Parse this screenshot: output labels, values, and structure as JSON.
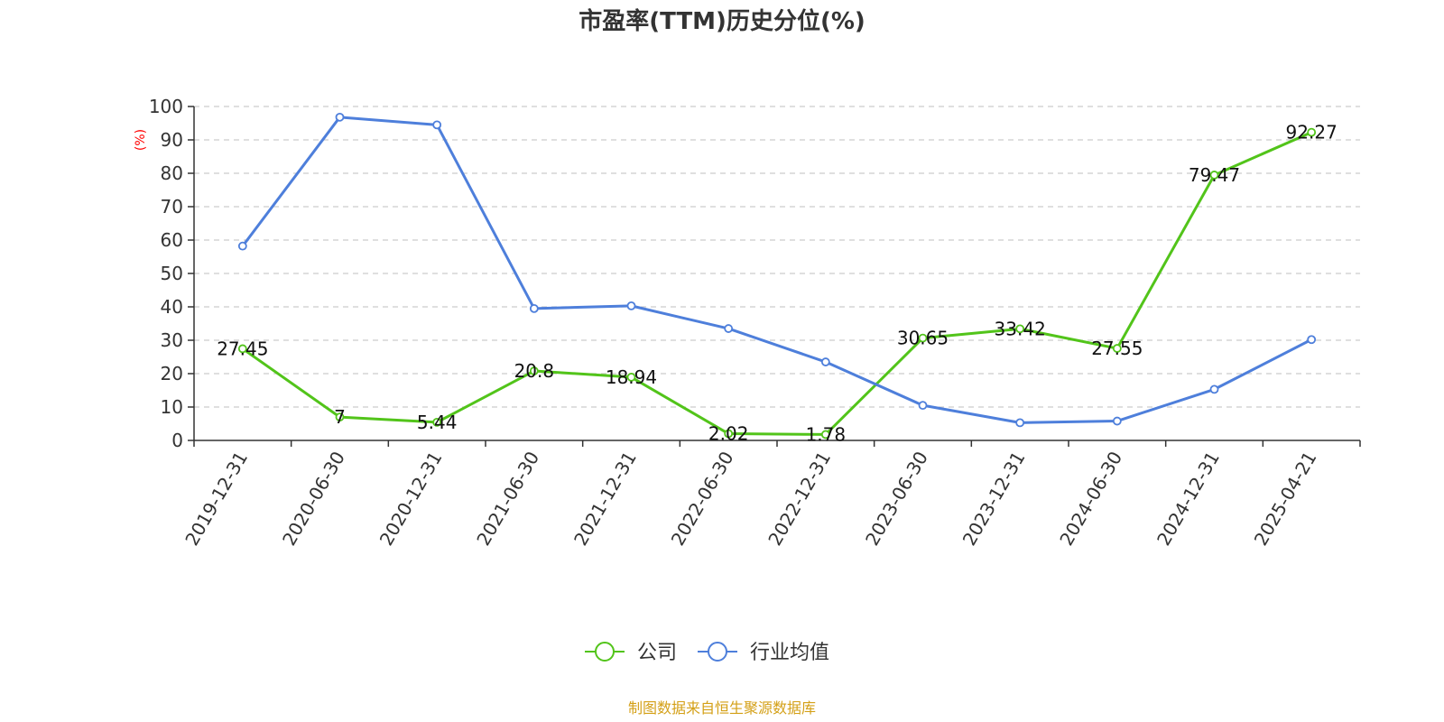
{
  "chart_data": {
    "type": "line",
    "title": "市盈率(TTM)历史分位(%)",
    "ylabel": "(%)",
    "ylim": [
      0,
      100
    ],
    "yticks": [
      0,
      10,
      20,
      30,
      40,
      50,
      60,
      70,
      80,
      90,
      100
    ],
    "grid": true,
    "legend_position": "bottom",
    "categories": [
      "2019-12-31",
      "2020-06-30",
      "2020-12-31",
      "2021-06-30",
      "2021-12-31",
      "2022-06-30",
      "2022-12-31",
      "2023-06-30",
      "2023-12-31",
      "2024-06-30",
      "2024-12-31",
      "2025-04-21"
    ],
    "series": [
      {
        "name": "公司",
        "color": "#52c41a",
        "values": [
          27.45,
          7,
          5.44,
          20.8,
          18.94,
          2.02,
          1.78,
          30.65,
          33.42,
          27.55,
          79.47,
          92.27
        ],
        "labels": [
          "27.45",
          "7",
          "5.44",
          "20.8",
          "18.94",
          "2.02",
          "1.78",
          "30.65",
          "33.42",
          "27.55",
          "79.47",
          "92.27"
        ]
      },
      {
        "name": "行业均值",
        "color": "#4e7fdb",
        "values": [
          58.2,
          96.8,
          94.5,
          39.5,
          40.3,
          33.5,
          23.5,
          10.5,
          5.3,
          5.8,
          15.3,
          30.2
        ]
      }
    ]
  },
  "source_text": "制图数据来自恒生聚源数据库",
  "colors": {
    "axis": "#333333",
    "grid": "#cccccc",
    "ylabel": "#ff0000",
    "source": "#d4a017"
  }
}
